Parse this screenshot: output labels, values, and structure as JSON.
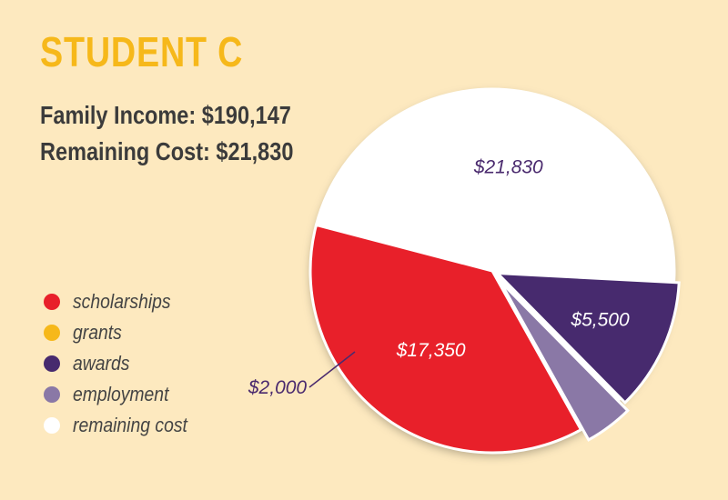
{
  "header": {
    "title": "STUDENT C",
    "family_income": "Family Income: $190,147",
    "remaining_cost": "Remaining Cost: $21,830"
  },
  "colors": {
    "background": "#fde9bf",
    "title": "#f6b81a",
    "scholarships": "#e8202a",
    "grants": "#f6b81a",
    "awards": "#472a6e",
    "employment": "#8a78a6",
    "remaining_cost": "#ffffff"
  },
  "legend": [
    {
      "label": "scholarships",
      "color": "#e8202a"
    },
    {
      "label": "grants",
      "color": "#f6b81a"
    },
    {
      "label": "awards",
      "color": "#472a6e"
    },
    {
      "label": "employment",
      "color": "#8a78a6"
    },
    {
      "label": "remaining cost",
      "color": "#ffffff"
    }
  ],
  "chart_data": {
    "type": "pie",
    "title": "",
    "slices": [
      {
        "category": "remaining cost",
        "value": 21830,
        "label": "$21,830",
        "color": "#ffffff",
        "label_color": "#4a2a6e"
      },
      {
        "category": "scholarships",
        "value": 17350,
        "label": "$17,350",
        "color": "#e8202a",
        "label_color": "#ffffff"
      },
      {
        "category": "employment",
        "value": 2000,
        "label": "$2,000",
        "color": "#8a78a6",
        "label_color": "#4a2a6e"
      },
      {
        "category": "awards",
        "value": 5500,
        "label": "$5,500",
        "color": "#472a6e",
        "label_color": "#ffffff"
      }
    ]
  }
}
